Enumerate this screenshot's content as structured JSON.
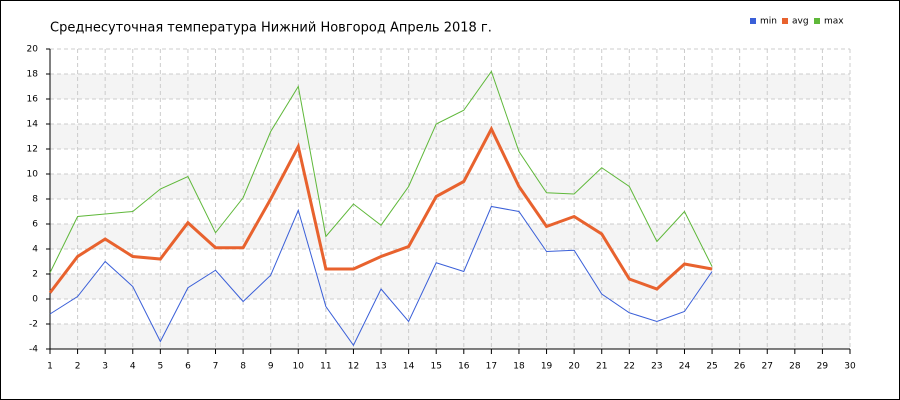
{
  "chart_data": {
    "type": "line",
    "title": "Среднесуточная температура Нижний Новгород  Апрель 2018 г.",
    "x": [
      1,
      2,
      3,
      4,
      5,
      6,
      7,
      8,
      9,
      10,
      11,
      12,
      13,
      14,
      15,
      16,
      17,
      18,
      19,
      20,
      21,
      22,
      23,
      24,
      25
    ],
    "series": [
      {
        "name": "min",
        "color": "#3a5fd8",
        "width": 1,
        "values": [
          -1.2,
          0.2,
          3.0,
          1.0,
          -3.4,
          0.9,
          2.3,
          -0.2,
          1.9,
          7.1,
          -0.6,
          -3.7,
          0.8,
          -1.8,
          2.9,
          2.2,
          7.4,
          7.0,
          3.8,
          3.9,
          0.4,
          -1.1,
          -1.8,
          -1.0,
          2.2
        ]
      },
      {
        "name": "avg",
        "color": "#e8622e",
        "width": 3,
        "values": [
          0.5,
          3.4,
          4.8,
          3.4,
          3.2,
          6.1,
          4.1,
          4.1,
          8.0,
          12.2,
          2.4,
          2.4,
          3.4,
          4.2,
          8.2,
          9.4,
          13.6,
          9.0,
          5.8,
          6.6,
          5.2,
          1.6,
          0.8,
          2.8,
          2.4
        ]
      },
      {
        "name": "max",
        "color": "#5fb83a",
        "width": 1,
        "values": [
          2.1,
          6.6,
          6.8,
          7.0,
          8.8,
          9.8,
          5.3,
          8.1,
          13.4,
          17.0,
          5.0,
          7.6,
          5.9,
          9.0,
          14.0,
          15.1,
          18.2,
          11.8,
          8.5,
          8.4,
          10.5,
          9.0,
          4.6,
          7.0,
          2.6
        ]
      }
    ],
    "xlim": [
      1,
      30
    ],
    "xticks": [
      1,
      2,
      3,
      4,
      5,
      6,
      7,
      8,
      9,
      10,
      11,
      12,
      13,
      14,
      15,
      16,
      17,
      18,
      19,
      20,
      21,
      22,
      23,
      24,
      25,
      26,
      27,
      28,
      29,
      30
    ],
    "ylim": [
      -4,
      20
    ],
    "yticks": [
      -4,
      -2,
      0,
      2,
      4,
      6,
      8,
      10,
      12,
      14,
      16,
      18,
      20
    ],
    "grid": true,
    "legend": "top-right"
  }
}
